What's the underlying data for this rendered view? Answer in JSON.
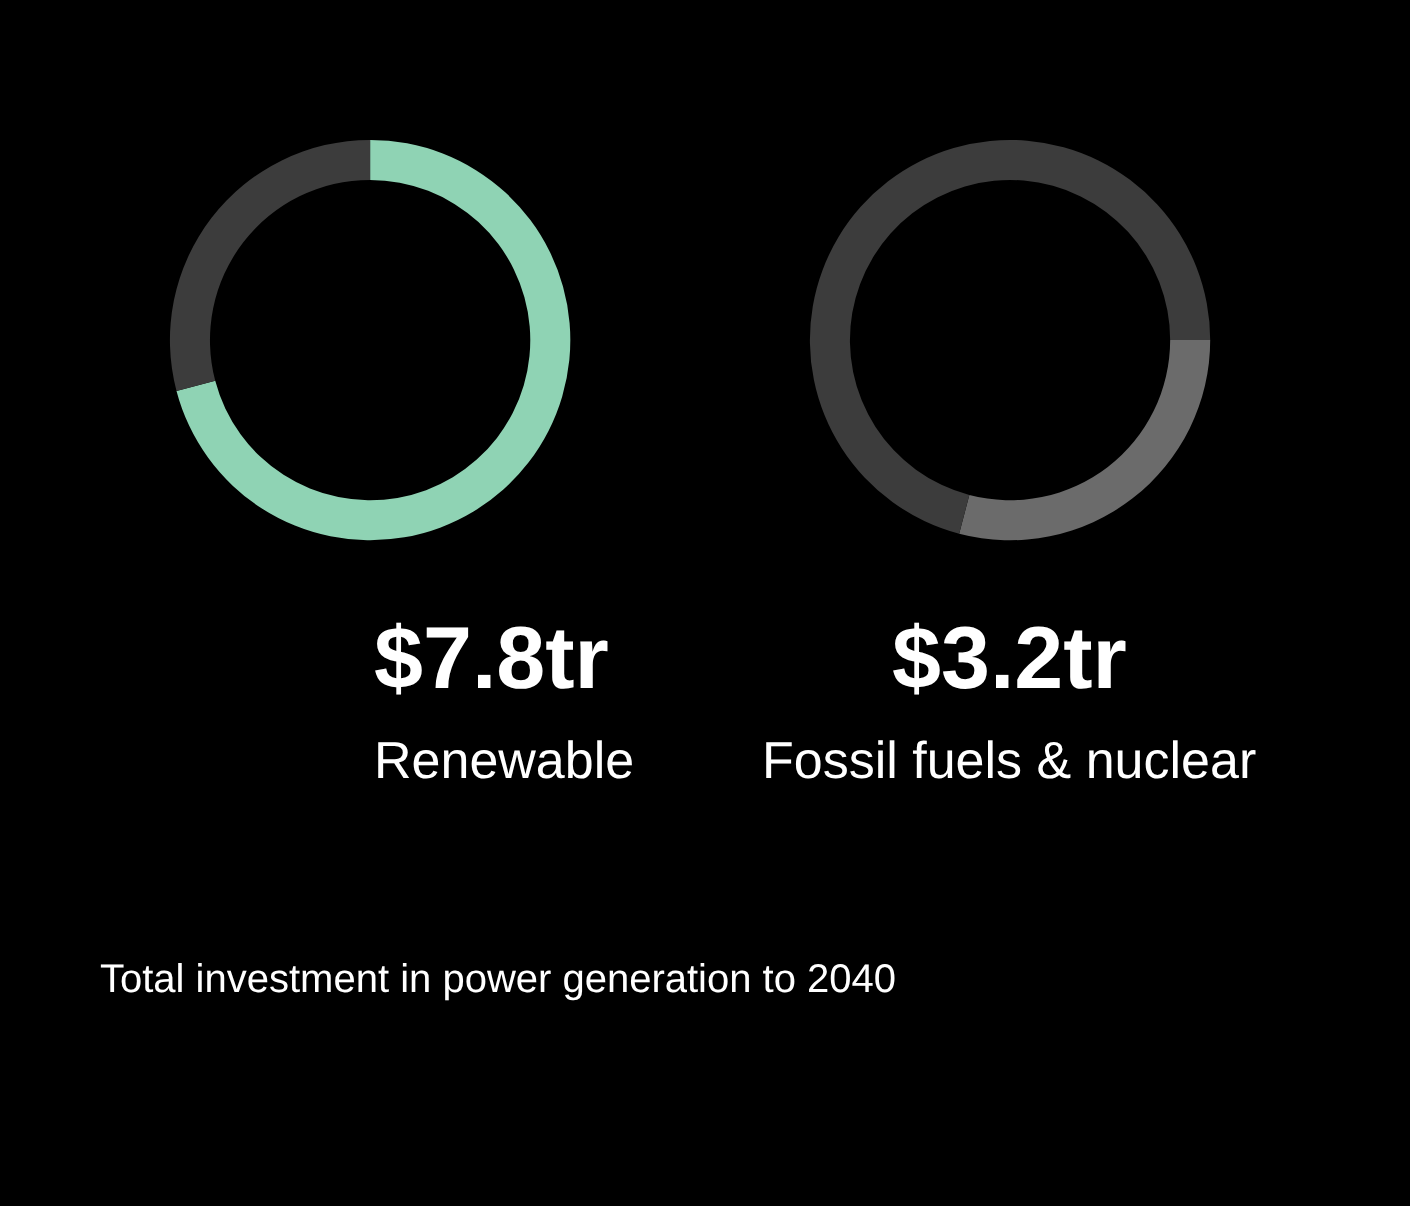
{
  "chart_data": [
    {
      "type": "donut",
      "categories": [
        "Renewable",
        null
      ],
      "values": [
        7.8,
        3.2
      ],
      "colors": [
        "#8fd3b4",
        "#3c3c3c"
      ],
      "value_labels": [
        "$7.8tr",
        null
      ],
      "annotations": [
        "Total investment in power generation to 2040"
      ]
    },
    {
      "type": "donut",
      "categories": [
        "Fossil fuels & nuclear",
        null
      ],
      "values": [
        3.2,
        7.8
      ],
      "colors": [
        "#6b6b6b",
        "#3c3c3c"
      ],
      "value_labels": [
        "$3.2tr",
        null
      ]
    }
  ]
}
